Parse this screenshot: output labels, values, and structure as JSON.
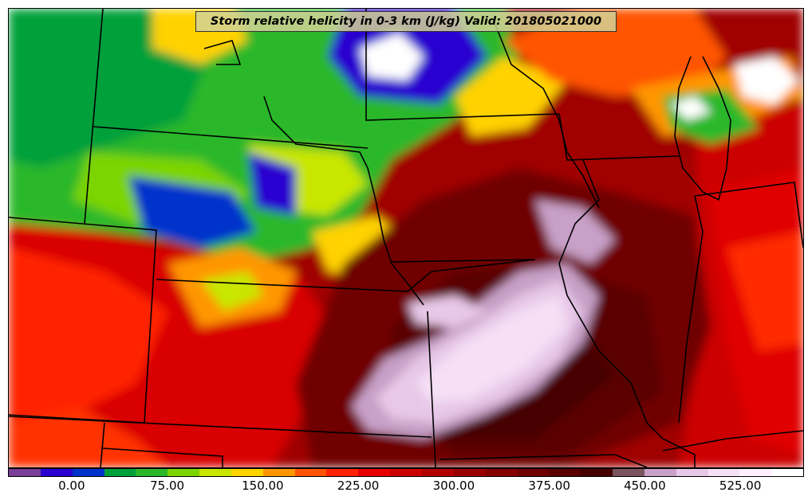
{
  "title": "Storm relative helicity in 0-3 km (J/kg) Valid: 201805021000",
  "colorbar": {
    "colors": [
      "#7a3d99",
      "#2a00d0",
      "#0033cc",
      "#00a03a",
      "#2ab82a",
      "#7cd400",
      "#c8e600",
      "#ffd200",
      "#ff9600",
      "#ff5500",
      "#ff2200",
      "#e60000",
      "#cc0000",
      "#b30000",
      "#9a0000",
      "#850000",
      "#700000",
      "#5a0000",
      "#470000",
      "#7a5560",
      "#c8a0c8",
      "#e8c8e8",
      "#f5e0f5",
      "#fff0ff",
      "#ffffff"
    ],
    "tick_labels": [
      "0.00",
      "75.00",
      "150.00",
      "225.00",
      "300.00",
      "375.00",
      "450.00",
      "525.00"
    ],
    "tick_segment_index": [
      2,
      5,
      8,
      11,
      14,
      17,
      20,
      23
    ]
  }
}
